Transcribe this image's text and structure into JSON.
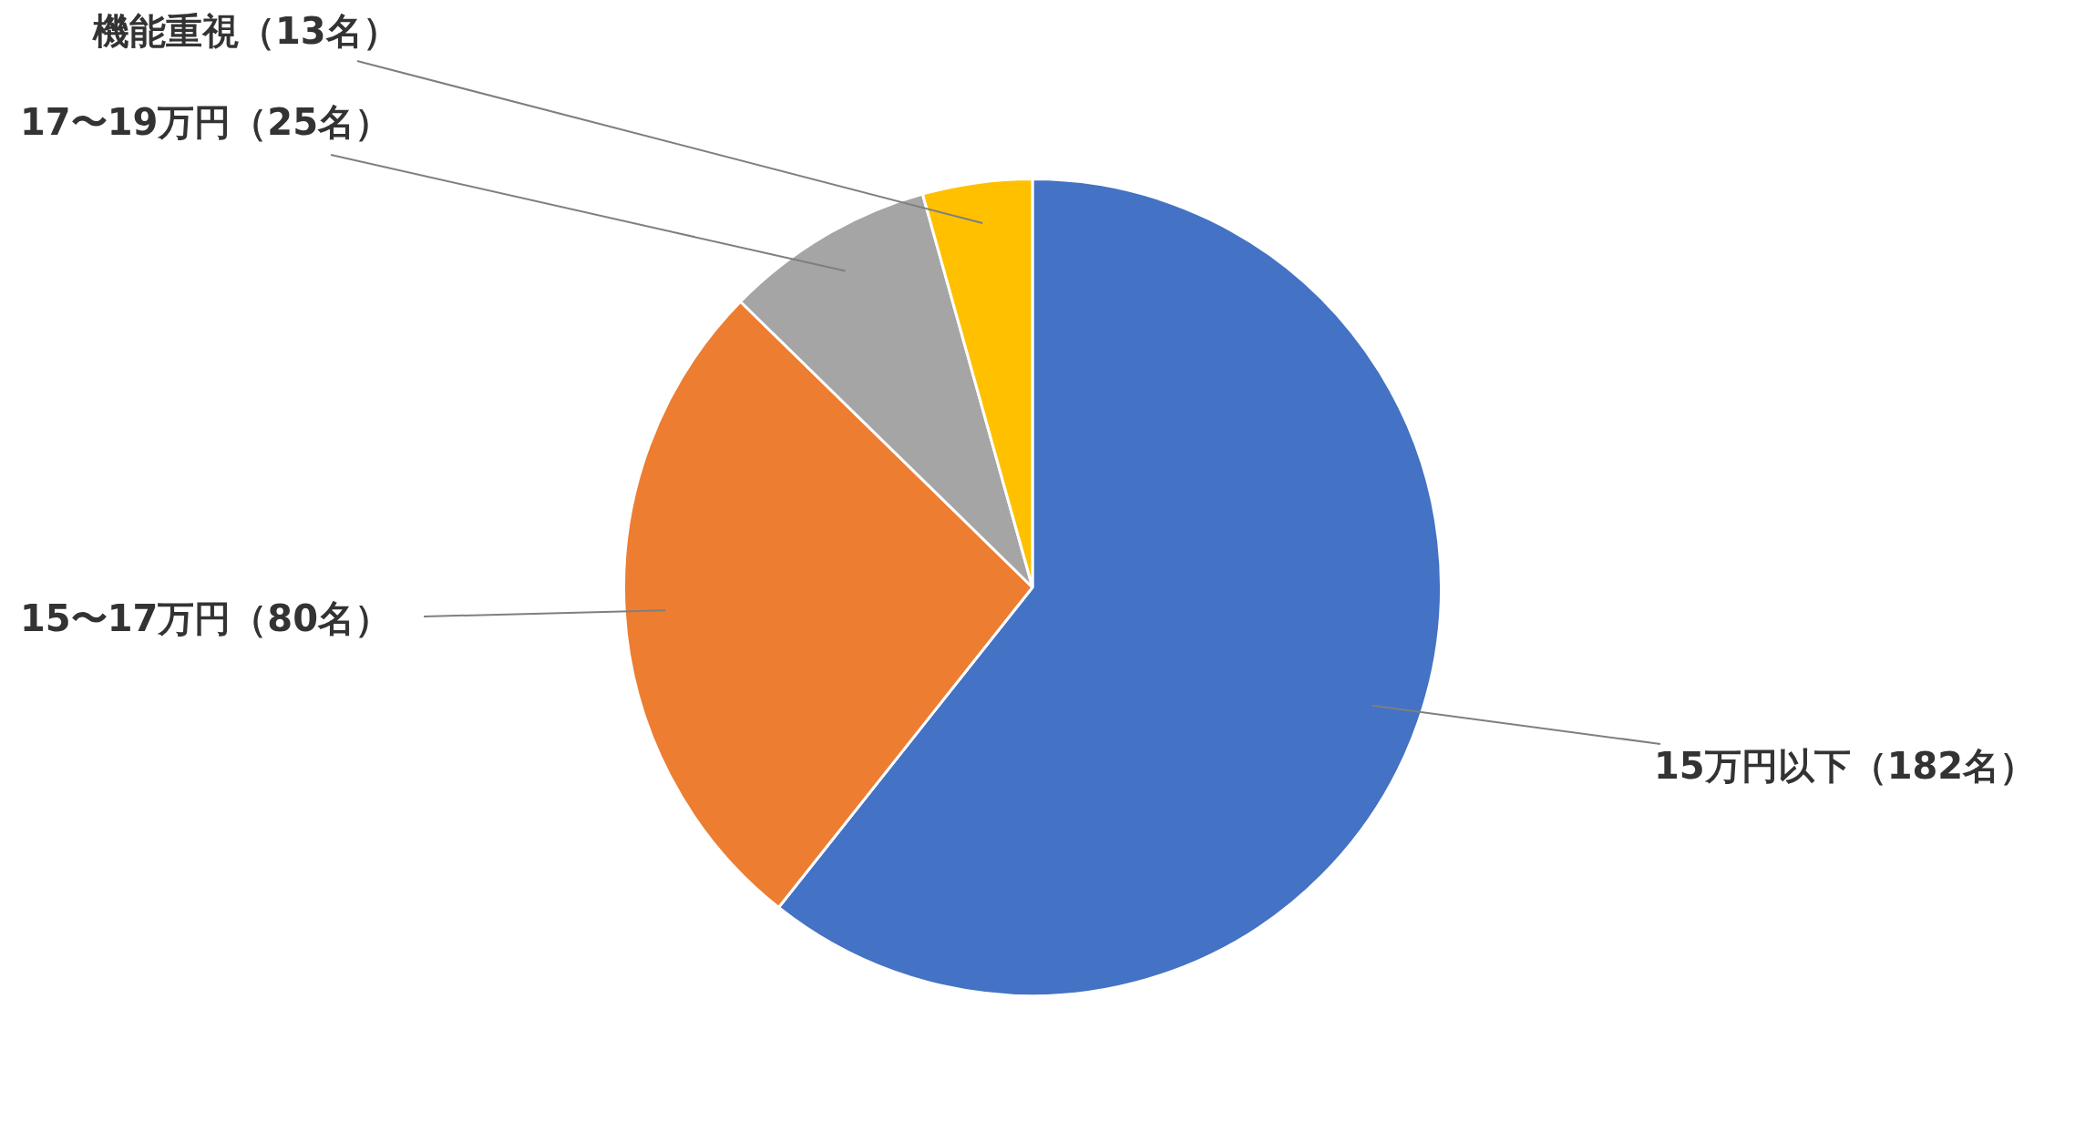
{
  "chart_data": {
    "type": "pie",
    "categories": [
      "15万円以下（182名）",
      "15〜17万円（80名）",
      "17〜19万円（25名）",
      "機能重視（13名）"
    ],
    "values": [
      182,
      80,
      25,
      13
    ],
    "colors": [
      "#4472c4",
      "#ed7d31",
      "#a5a5a5",
      "#ffc000"
    ],
    "legend": false
  }
}
